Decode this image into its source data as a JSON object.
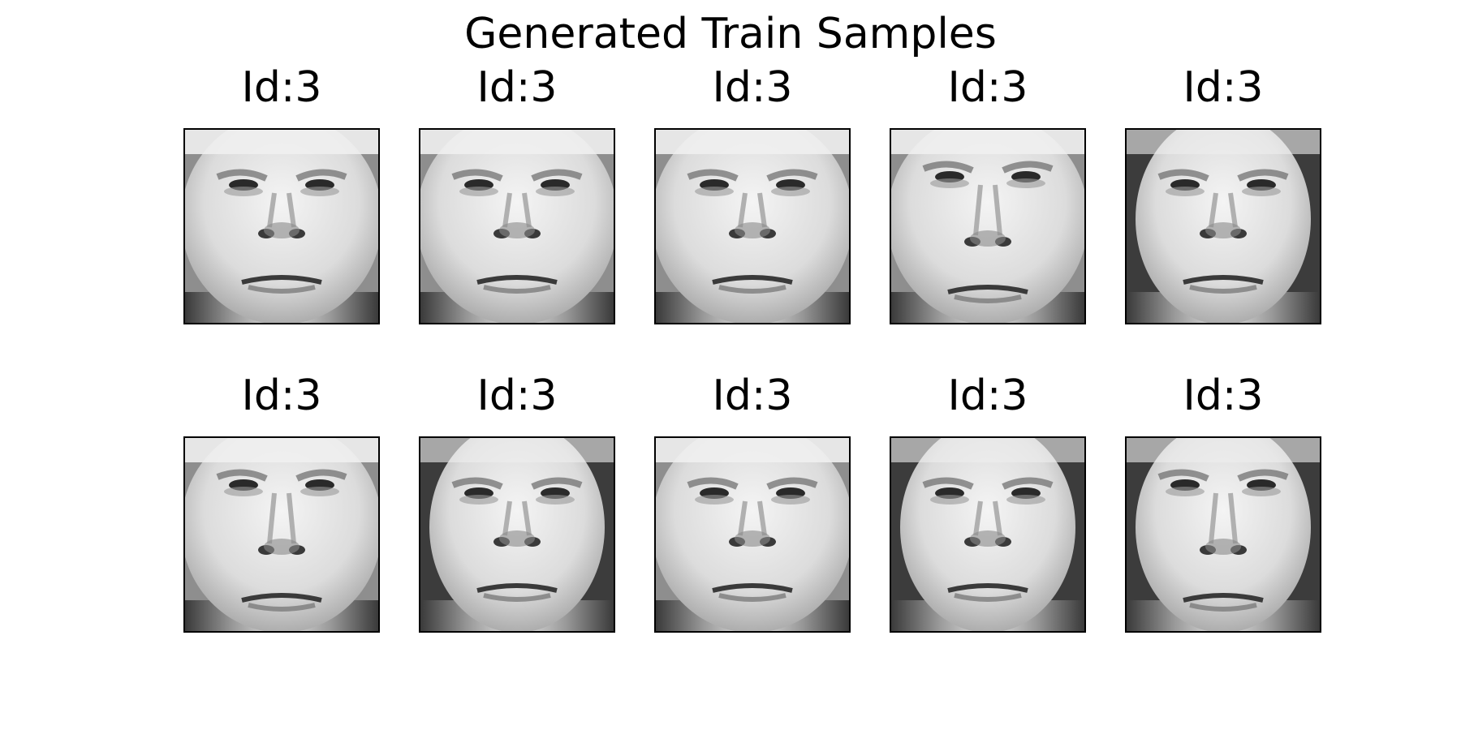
{
  "figure": {
    "suptitle": "Generated Train Samples",
    "panels": [
      {
        "label": "Id:3",
        "variant": "a"
      },
      {
        "label": "Id:3",
        "variant": "a"
      },
      {
        "label": "Id:3",
        "variant": "a"
      },
      {
        "label": "Id:3",
        "variant": "b"
      },
      {
        "label": "Id:3",
        "variant": "c"
      },
      {
        "label": "Id:3",
        "variant": "b"
      },
      {
        "label": "Id:3",
        "variant": "c"
      },
      {
        "label": "Id:3",
        "variant": "a"
      },
      {
        "label": "Id:3",
        "variant": "c"
      },
      {
        "label": "Id:3",
        "variant": "d"
      }
    ]
  }
}
